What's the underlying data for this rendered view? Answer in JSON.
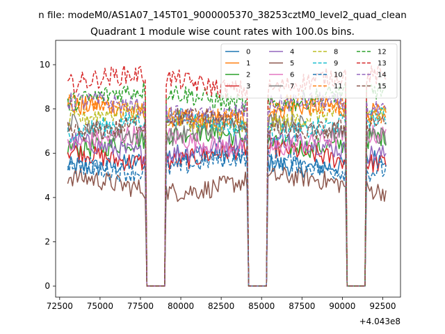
{
  "figure": {
    "suptitle": "n file: modeM0/AS1A07_145T01_9000005370_38253cztM0_level2_quad_clean",
    "offset_label": "+4.043e8"
  },
  "chart_data": {
    "type": "line",
    "title": "Quadrant 1 module wise count rates with 100.0s bins.",
    "xlabel": "",
    "ylabel": "",
    "x_offset": 404300000,
    "xlim": [
      72250,
      93600
    ],
    "ylim": [
      -0.5,
      11.1
    ],
    "x_ticks": [
      72500,
      75000,
      77500,
      80000,
      82500,
      85000,
      87500,
      90000,
      92500
    ],
    "x_tick_labels": [
      "72500",
      "75000",
      "77500",
      "80000",
      "82500",
      "85000",
      "87500",
      "90000",
      "92500"
    ],
    "y_ticks": [
      0,
      2,
      4,
      6,
      8,
      10
    ],
    "y_tick_labels": [
      "0",
      "2",
      "4",
      "6",
      "8",
      "10"
    ],
    "legend_position": "upper-right",
    "legend_columns": 4,
    "bin_size_s": 100,
    "segments": [
      [
        73000,
        77700
      ],
      [
        79100,
        84000
      ],
      [
        85400,
        90100
      ],
      [
        91500,
        92700
      ]
    ],
    "gaps": [
      [
        77900,
        79000
      ],
      [
        84200,
        85300
      ],
      [
        90300,
        91400
      ]
    ],
    "series": [
      {
        "name": "0",
        "color": "#1f77b4",
        "dash": "solid",
        "mean": 5.7
      },
      {
        "name": "1",
        "color": "#ff7f0e",
        "dash": "solid",
        "mean": 7.8
      },
      {
        "name": "2",
        "color": "#2ca02c",
        "dash": "solid",
        "mean": 6.6
      },
      {
        "name": "3",
        "color": "#d62728",
        "dash": "solid",
        "mean": 5.9
      },
      {
        "name": "4",
        "color": "#9467bd",
        "dash": "solid",
        "mean": 6.3
      },
      {
        "name": "5",
        "color": "#8c564b",
        "dash": "solid",
        "mean": 4.6
      },
      {
        "name": "6",
        "color": "#e377c2",
        "dash": "solid",
        "mean": 6.5
      },
      {
        "name": "7",
        "color": "#7f7f7f",
        "dash": "solid",
        "mean": 7.1
      },
      {
        "name": "8",
        "color": "#bcbd22",
        "dash": "dashed",
        "mean": 7.5
      },
      {
        "name": "9",
        "color": "#17becf",
        "dash": "dashed",
        "mean": 7.3
      },
      {
        "name": "10",
        "color": "#1f77b4",
        "dash": "dashed",
        "mean": 5.5
      },
      {
        "name": "11",
        "color": "#ff7f0e",
        "dash": "dashed",
        "mean": 7.9
      },
      {
        "name": "12",
        "color": "#2ca02c",
        "dash": "dashed",
        "mean": 8.5
      },
      {
        "name": "13",
        "color": "#d62728",
        "dash": "dashed",
        "mean": 9.2
      },
      {
        "name": "14",
        "color": "#9467bd",
        "dash": "dashed",
        "mean": 8.0
      },
      {
        "name": "15",
        "color": "#8c564b",
        "dash": "dashed",
        "mean": 7.3
      }
    ]
  }
}
